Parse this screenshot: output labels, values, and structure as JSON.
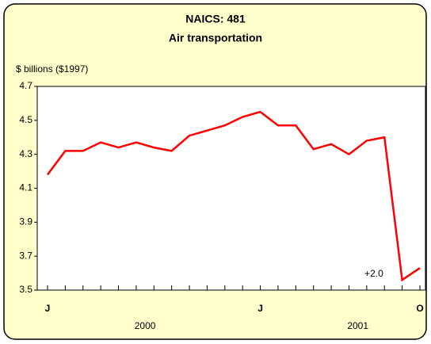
{
  "chart_data": {
    "type": "line",
    "title": "NAICS: 481",
    "subtitle": "Air transportation",
    "y_label": "$ billions ($1997)",
    "annotation": "+2.0",
    "categories": [
      "J",
      null,
      null,
      null,
      null,
      null,
      null,
      null,
      null,
      null,
      null,
      null,
      "J",
      null,
      null,
      null,
      null,
      null,
      null,
      null,
      null,
      "O"
    ],
    "year_labels": [
      "2000",
      "2001"
    ],
    "series": [
      {
        "name": "Air transportation",
        "color": "#ff0000",
        "values": [
          4.18,
          4.32,
          4.32,
          4.37,
          4.34,
          4.37,
          4.34,
          4.32,
          4.41,
          4.44,
          4.47,
          4.52,
          4.55,
          4.47,
          4.47,
          4.33,
          4.36,
          4.3,
          4.38,
          4.4,
          3.56,
          3.63
        ]
      }
    ],
    "ylim": [
      3.5,
      4.7
    ],
    "yticks": [
      3.5,
      3.7,
      3.9,
      4.1,
      4.3,
      4.5,
      4.7
    ],
    "grid": false
  }
}
